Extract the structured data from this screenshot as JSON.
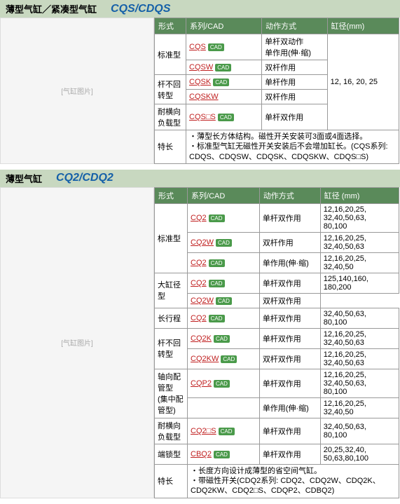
{
  "sections": [
    {
      "title_cn": "薄型气缸／紧凑型气缸",
      "title_en": "CQS/CDQS",
      "img_label": "[气缸图片]",
      "headers": [
        "形式",
        "系列/CAD",
        "动作方式",
        "缸径(mm)"
      ],
      "rows": [
        {
          "form": "标准型",
          "rowspan": 2,
          "series": "CQS",
          "cad": true,
          "action": "单杆双动作\n单作用(伸·缩)",
          "bore": "12, 16, 20, 25",
          "bore_rowspan": 5
        },
        {
          "series": "CQSW",
          "cad": true,
          "action": "双杆作用"
        },
        {
          "form": "杆不回转型",
          "rowspan": 2,
          "series": "CQSK",
          "cad": true,
          "action": "单杆作用"
        },
        {
          "series": "CQSKW",
          "cad": false,
          "action": "双杆作用"
        },
        {
          "form": "耐横向负载型",
          "series": "CQS□S",
          "cad": true,
          "action": "单杆双作用"
        }
      ],
      "feature_label": "特长",
      "feature_text": "・薄型长方体结构。磁性开关安装可3面或4面选择。\n・标准型气缸无磁性开关安装后不会增加缸长。(CQS系列: CDQS、CDQSW、CDQSK、CDQSKW、CDQS□S)"
    },
    {
      "title_cn": "薄型气缸",
      "title_en": "CQ2/CDQ2",
      "img_label": "[气缸图片]",
      "headers": [
        "形式",
        "系列/CAD",
        "动作方式",
        "缸径 (mm)"
      ],
      "rows": [
        {
          "form": "标准型",
          "rowspan": 3,
          "series": "CQ2",
          "cad": true,
          "action": "单杆双作用",
          "bore": "12,16,20,25,\n32,40,50,63,\n80,100"
        },
        {
          "series": "CQ2W",
          "cad": true,
          "action": "双杆作用",
          "bore": "12,16,20,25,\n32,40,50,63"
        },
        {
          "series": "CQ2",
          "cad": true,
          "action": "单作用(伸·缩)",
          "bore": "12,16,20,25,\n32,40,50"
        },
        {
          "form": "大缸径型",
          "rowspan": 2,
          "series": "CQ2",
          "cad": true,
          "action": "单杆双作用",
          "bore": "125,140,160,\n180,200"
        },
        {
          "series": "CQ2W",
          "cad": true,
          "action": "双杆双作用"
        },
        {
          "form": "长行程",
          "series": "CQ2",
          "cad": true,
          "action": "单杆双作用",
          "bore": "32,40,50,63,\n80,100"
        },
        {
          "form": "杆不回转型",
          "rowspan": 2,
          "series": "CQ2K",
          "cad": true,
          "action": "单杆双作用",
          "bore": "12,16,20,25,\n32,40,50,63"
        },
        {
          "series": "CQ2KW",
          "cad": true,
          "action": "双杆双作用",
          "bore": "12,16,20,25,\n32,40,50,63"
        },
        {
          "form": "轴向配管型\n(集中配管型)",
          "rowspan": 2,
          "series": "CQP2",
          "cad": true,
          "action": "单杆双作用",
          "bore": "12,16,20,25,\n32,40,50,63,\n80,100"
        },
        {
          "series": "",
          "cad": false,
          "action": "单作用(伸·缩)",
          "bore": "12,16,20,25,\n32,40,50"
        },
        {
          "form": "耐横向负载型",
          "series": "CQ2□S",
          "cad": true,
          "action": "单杆双作用",
          "bore": "32,40,50,63,\n80,100"
        },
        {
          "form": "端锁型",
          "series": "CBQ2",
          "cad": true,
          "action": "单杆双作用",
          "bore": "20,25,32,40,\n50,63,80,100"
        }
      ],
      "feature_label": "特长",
      "feature_text": "・长度方向设计成薄型的省空间气缸。\n・带磁性开关(CDQ2系列: CDQ2、CDQ2W、CDQ2K、CDQ2KW、CDQ2□S、CDQP2、CDBQ2)"
    }
  ]
}
